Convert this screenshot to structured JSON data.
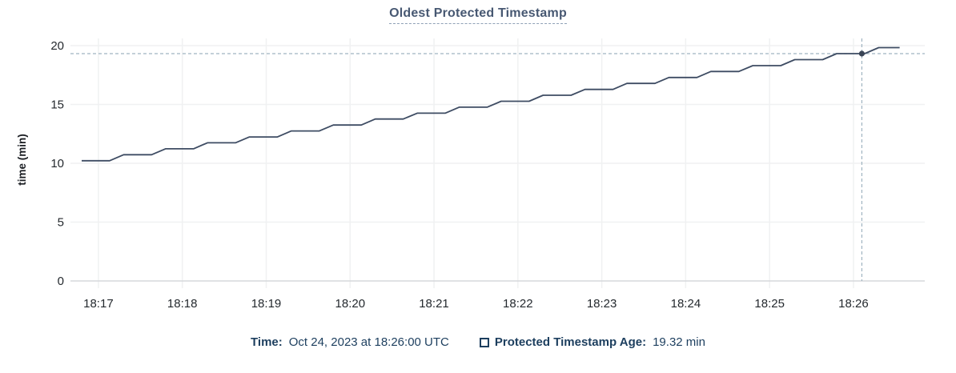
{
  "title": {
    "text": "Oldest Protected Timestamp"
  },
  "chart_data": {
    "type": "line",
    "title": "Oldest Protected Timestamp",
    "xlabel": "",
    "ylabel": "time (min)",
    "ylim": [
      0,
      20
    ],
    "y_ticks": [
      0,
      5,
      10,
      15,
      20
    ],
    "x_ticks": [
      {
        "t": 0,
        "label": "18:17"
      },
      {
        "t": 60,
        "label": "18:18"
      },
      {
        "t": 120,
        "label": "18:19"
      },
      {
        "t": 180,
        "label": "18:20"
      },
      {
        "t": 240,
        "label": "18:21"
      },
      {
        "t": 300,
        "label": "18:22"
      },
      {
        "t": 360,
        "label": "18:23"
      },
      {
        "t": 420,
        "label": "18:24"
      },
      {
        "t": 480,
        "label": "18:25"
      },
      {
        "t": 540,
        "label": "18:26"
      }
    ],
    "x_range_seconds_after_1817": [
      -20,
      591
    ],
    "grid": true,
    "legend_position": "bottom",
    "series": [
      {
        "name": "Protected Timestamp Age",
        "unit": "min",
        "points": [
          [
            -12,
            10.22
          ],
          [
            8,
            10.22
          ],
          [
            18,
            10.73
          ],
          [
            38,
            10.73
          ],
          [
            48,
            11.23
          ],
          [
            68,
            11.23
          ],
          [
            78,
            11.74
          ],
          [
            98,
            11.74
          ],
          [
            108,
            12.24
          ],
          [
            128,
            12.24
          ],
          [
            138,
            12.75
          ],
          [
            158,
            12.75
          ],
          [
            168,
            13.25
          ],
          [
            188,
            13.25
          ],
          [
            198,
            13.76
          ],
          [
            218,
            13.76
          ],
          [
            228,
            14.26
          ],
          [
            248,
            14.26
          ],
          [
            258,
            14.77
          ],
          [
            278,
            14.77
          ],
          [
            288,
            15.27
          ],
          [
            308,
            15.27
          ],
          [
            318,
            15.78
          ],
          [
            338,
            15.78
          ],
          [
            348,
            16.28
          ],
          [
            368,
            16.28
          ],
          [
            378,
            16.79
          ],
          [
            398,
            16.79
          ],
          [
            408,
            17.29
          ],
          [
            428,
            17.29
          ],
          [
            438,
            17.8
          ],
          [
            458,
            17.8
          ],
          [
            468,
            18.3
          ],
          [
            488,
            18.3
          ],
          [
            498,
            18.81
          ],
          [
            518,
            18.81
          ],
          [
            528,
            19.32
          ],
          [
            548,
            19.32
          ],
          [
            558,
            19.83
          ],
          [
            573,
            19.83
          ]
        ]
      }
    ],
    "crosshair": {
      "t_seconds": 546,
      "value_min": 19.32,
      "time_label": "18:26:00"
    }
  },
  "legend": {
    "time_label": "Time:",
    "time_value": "Oct 24, 2023 at 18:26:00 UTC",
    "series_label": "Protected Timestamp Age:",
    "series_value": "19.32 min",
    "checkbox_checked": false
  },
  "colors": {
    "line": "#3e4c63",
    "marker": "#394455",
    "title_text": "#475872",
    "legend_text": "#1c3e5e",
    "crosshair": "#9fb3c0",
    "gridline": "#f0f1f2",
    "axis_line": "#d6d8db",
    "tick_text": "#24292e",
    "axis_label_text": "#1b1e23",
    "background": "#ffffff"
  }
}
